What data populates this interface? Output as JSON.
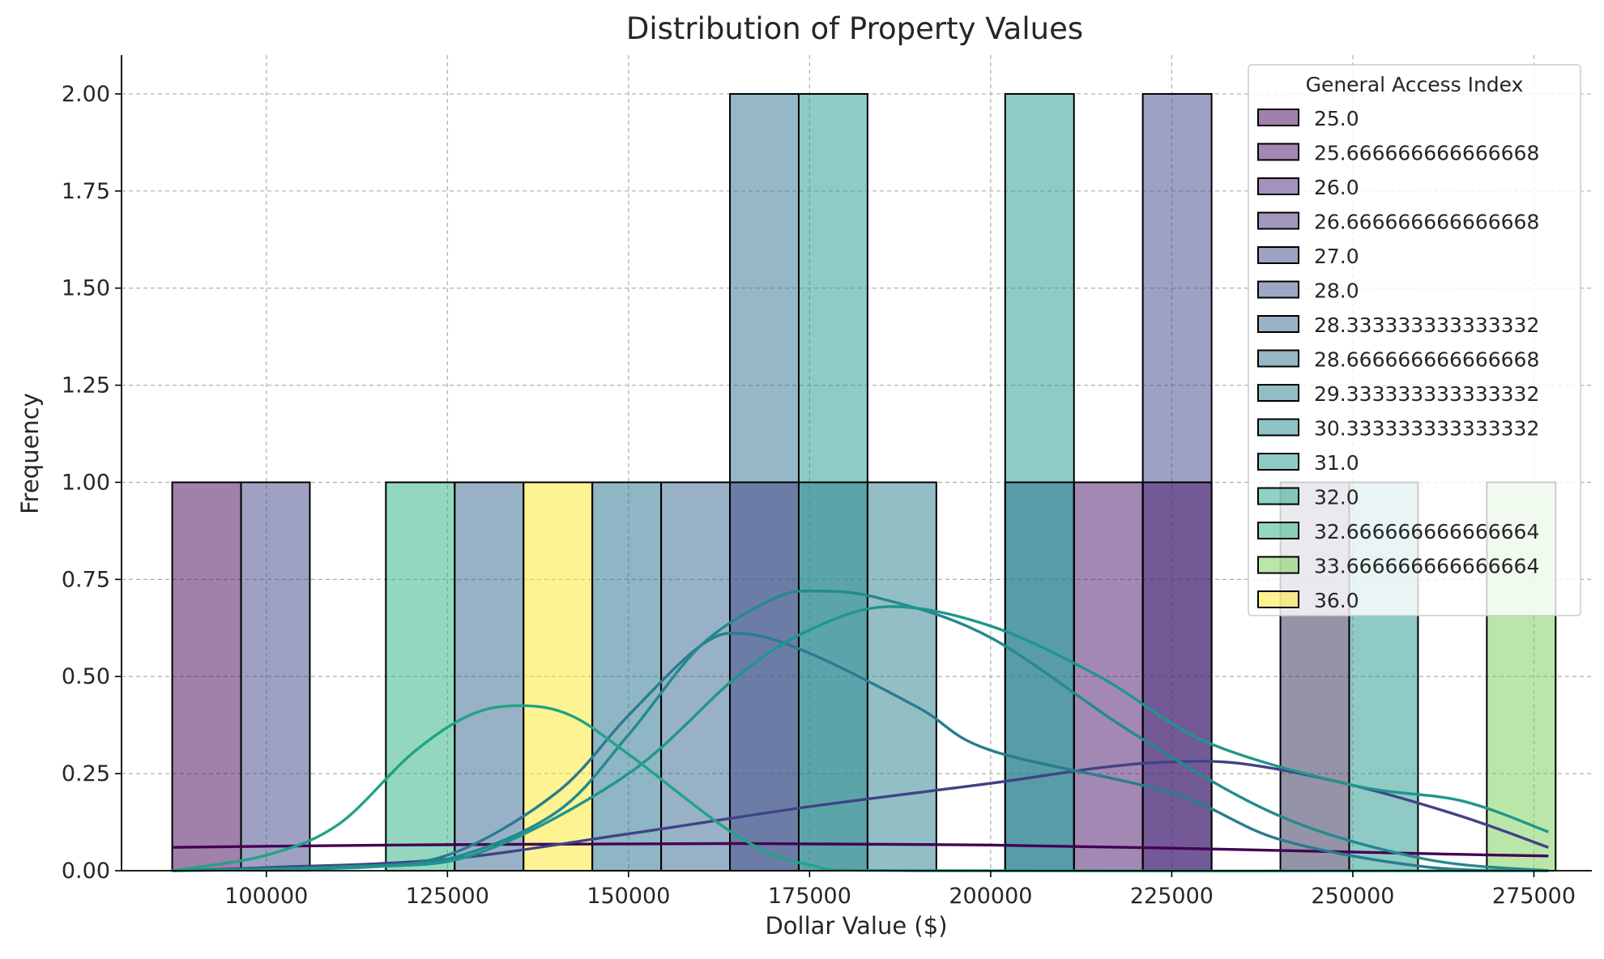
{
  "chart_data": {
    "type": "bar",
    "title": "Distribution of Property Values",
    "xlabel": "Dollar Value ($)",
    "ylabel": "Frequency",
    "xlim": [
      80000,
      283000
    ],
    "ylim": [
      0,
      2.1
    ],
    "xticks": [
      100000,
      125000,
      150000,
      175000,
      200000,
      225000,
      250000,
      275000
    ],
    "yticks": [
      "0.00",
      "0.25",
      "0.50",
      "0.75",
      "1.00",
      "1.25",
      "1.50",
      "1.75",
      "2.00"
    ],
    "grid": true,
    "legend_position": "top-right",
    "legend_title": "General Access Index",
    "series": [
      {
        "name": "25.0",
        "color": "#440154",
        "kde": [
          [
            87000,
            0.06
          ],
          [
            100000,
            0.063
          ],
          [
            125000,
            0.067
          ],
          [
            150000,
            0.069
          ],
          [
            165000,
            0.07
          ],
          [
            175000,
            0.069
          ],
          [
            200000,
            0.066
          ],
          [
            225000,
            0.058
          ],
          [
            250000,
            0.048
          ],
          [
            265000,
            0.042
          ],
          [
            277000,
            0.038
          ]
        ]
      },
      {
        "name": "25.666666666666668",
        "color": "#47116a"
      },
      {
        "name": "26.0",
        "color": "#482576"
      },
      {
        "name": "26.666666666666668",
        "color": "#46317e"
      },
      {
        "name": "27.0",
        "color": "#404387",
        "kde": [
          [
            87000,
            0.0
          ],
          [
            100000,
            0.008
          ],
          [
            125000,
            0.03
          ],
          [
            150000,
            0.095
          ],
          [
            175000,
            0.165
          ],
          [
            200000,
            0.225
          ],
          [
            215000,
            0.265
          ],
          [
            225000,
            0.28
          ],
          [
            235000,
            0.275
          ],
          [
            250000,
            0.22
          ],
          [
            265000,
            0.14
          ],
          [
            277000,
            0.06
          ]
        ]
      },
      {
        "name": "28.0",
        "color": "#3b528b"
      },
      {
        "name": "28.333333333333332",
        "color": "#33638d"
      },
      {
        "name": "28.666666666666668",
        "color": "#2e6f8e"
      },
      {
        "name": "29.333333333333332",
        "color": "#287d8e",
        "kde": [
          [
            87000,
            0.0
          ],
          [
            110000,
            0.01
          ],
          [
            125000,
            0.04
          ],
          [
            140000,
            0.2
          ],
          [
            150000,
            0.4
          ],
          [
            160000,
            0.58
          ],
          [
            166000,
            0.61
          ],
          [
            175000,
            0.56
          ],
          [
            190000,
            0.42
          ],
          [
            200000,
            0.31
          ],
          [
            225000,
            0.2
          ],
          [
            240000,
            0.08
          ],
          [
            260000,
            0.01
          ],
          [
            277000,
            0.0
          ]
        ]
      },
      {
        "name": "30.333333333333332",
        "color": "#238a8d",
        "kde": [
          [
            87000,
            0.0
          ],
          [
            110000,
            0.01
          ],
          [
            125000,
            0.03
          ],
          [
            140000,
            0.15
          ],
          [
            150000,
            0.35
          ],
          [
            160000,
            0.58
          ],
          [
            170000,
            0.7
          ],
          [
            176000,
            0.72
          ],
          [
            185000,
            0.7
          ],
          [
            200000,
            0.6
          ],
          [
            220000,
            0.35
          ],
          [
            240000,
            0.14
          ],
          [
            260000,
            0.03
          ],
          [
            277000,
            0.0
          ]
        ]
      },
      {
        "name": "31.0",
        "color": "#1f968b",
        "kde": [
          [
            87000,
            0.0
          ],
          [
            115000,
            0.01
          ],
          [
            130000,
            0.05
          ],
          [
            150000,
            0.25
          ],
          [
            165000,
            0.5
          ],
          [
            175000,
            0.62
          ],
          [
            186000,
            0.68
          ],
          [
            200000,
            0.63
          ],
          [
            215000,
            0.5
          ],
          [
            230000,
            0.33
          ],
          [
            250000,
            0.22
          ],
          [
            265000,
            0.18
          ],
          [
            277000,
            0.1
          ]
        ]
      },
      {
        "name": "32.0",
        "color": "#20a386",
        "kde": [
          [
            87000,
            0.0
          ],
          [
            100000,
            0.04
          ],
          [
            110000,
            0.12
          ],
          [
            120000,
            0.3
          ],
          [
            128000,
            0.4
          ],
          [
            135000,
            0.425
          ],
          [
            142000,
            0.4
          ],
          [
            150000,
            0.3
          ],
          [
            165000,
            0.09
          ],
          [
            175000,
            0.015
          ],
          [
            190000,
            0.0
          ],
          [
            277000,
            0.0
          ]
        ]
      },
      {
        "name": "32.666666666666664",
        "color": "#29af7f"
      },
      {
        "name": "33.666666666666664",
        "color": "#75d054"
      },
      {
        "name": "36.0",
        "color": "#fde725"
      }
    ],
    "bars": [
      {
        "x0": 87000,
        "x1": 96500,
        "value": 1,
        "color": "#440154"
      },
      {
        "x0": 96500,
        "x1": 106000,
        "value": 1,
        "color": "#404387"
      },
      {
        "x0": 116500,
        "x1": 126000,
        "value": 1,
        "color": "#29af7f"
      },
      {
        "x0": 126000,
        "x1": 135500,
        "value": 1,
        "color": "#33638d"
      },
      {
        "x0": 135500,
        "x1": 145000,
        "value": 1,
        "color": "#fde725"
      },
      {
        "x0": 145000,
        "x1": 154500,
        "value": 1,
        "color": "#1f6e8a"
      },
      {
        "x0": 154500,
        "x1": 164000,
        "value": 1,
        "color": "#33638d"
      },
      {
        "x0": 164000,
        "x1": 173500,
        "value": 2,
        "color": "#2e6f8e"
      },
      {
        "x0": 173500,
        "x1": 183000,
        "value": 2,
        "color": "#1f968b"
      },
      {
        "x0": 183000,
        "x1": 192500,
        "value": 1,
        "color": "#287d8e"
      },
      {
        "x0": 202000,
        "x1": 211500,
        "value": 2,
        "color": "#1f968b"
      },
      {
        "x0": 211500,
        "x1": 221000,
        "value": 1,
        "color": "#47116a"
      },
      {
        "x0": 221000,
        "x1": 230500,
        "value": 2,
        "color": "#404387"
      },
      {
        "x0": 240000,
        "x1": 249500,
        "value": 1,
        "color": "#2a2850"
      },
      {
        "x0": 249500,
        "x1": 259000,
        "value": 1,
        "color": "#1f968b"
      },
      {
        "x0": 268500,
        "x1": 278000,
        "value": 1,
        "color": "#75d054"
      }
    ],
    "overlays": [
      {
        "x0": 164000,
        "x1": 173500,
        "value": 1,
        "color": "#404387"
      },
      {
        "x0": 173500,
        "x1": 183000,
        "value": 1,
        "color": "#287d8e"
      },
      {
        "x0": 202000,
        "x1": 211500,
        "value": 1,
        "color": "#1f6e8a"
      },
      {
        "x0": 221000,
        "x1": 230500,
        "value": 1,
        "color": "#47116a"
      }
    ]
  }
}
